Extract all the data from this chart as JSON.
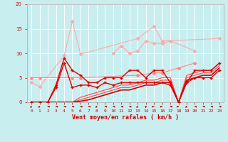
{
  "bg_color": "#c8eef0",
  "grid_color": "#ffffff",
  "xlabel": "Vent moyen/en rafales ( km/h )",
  "xlabel_color": "#cc0000",
  "tick_color": "#cc0000",
  "xlim": [
    -0.5,
    23.5
  ],
  "ylim": [
    0,
    20
  ],
  "yticks": [
    0,
    5,
    10,
    15,
    20
  ],
  "xticks": [
    0,
    1,
    2,
    3,
    4,
    5,
    6,
    7,
    8,
    9,
    10,
    11,
    12,
    13,
    14,
    15,
    16,
    17,
    18,
    19,
    20,
    21,
    22,
    23
  ],
  "lines": [
    {
      "x": [
        0,
        1,
        4,
        5,
        6,
        13,
        15,
        16,
        23
      ],
      "y": [
        4,
        3.2,
        9.5,
        16.5,
        9.8,
        13,
        15.5,
        12.5,
        13
      ],
      "color": "#ffaaaa",
      "lw": 0.8,
      "marker": "D",
      "ms": 2.0,
      "zorder": 3,
      "connected": false
    },
    {
      "x": [
        10,
        11,
        12,
        13,
        14,
        15,
        16,
        17,
        20
      ],
      "y": [
        10,
        11.5,
        10,
        10.5,
        12.5,
        12,
        12,
        12.5,
        10.5
      ],
      "color": "#ffaaaa",
      "lw": 0.8,
      "marker": "D",
      "ms": 2.0,
      "zorder": 3,
      "connected": false
    },
    {
      "x": [
        0,
        1,
        5,
        6,
        13,
        15,
        16,
        18,
        20
      ],
      "y": [
        5,
        5,
        5,
        5,
        5.5,
        6,
        6,
        7,
        8
      ],
      "color": "#ff8888",
      "lw": 0.8,
      "marker": "D",
      "ms": 2.0,
      "zorder": 4,
      "connected": false
    },
    {
      "x": [
        0,
        1,
        2,
        3,
        4,
        5,
        6,
        7,
        8,
        9,
        10,
        11,
        12,
        13,
        14,
        15,
        16,
        17,
        18,
        19,
        20,
        21,
        22,
        23
      ],
      "y": [
        0,
        0,
        0,
        3.5,
        9,
        6.5,
        5.5,
        4,
        4,
        5,
        5,
        5,
        6.5,
        6.5,
        5,
        6.5,
        6.5,
        4,
        0,
        4,
        6.5,
        6.5,
        6.5,
        8
      ],
      "color": "#dd0000",
      "lw": 1.0,
      "marker": "+",
      "ms": 3,
      "zorder": 5,
      "connected": true
    },
    {
      "x": [
        0,
        1,
        2,
        3,
        4,
        5,
        6,
        7,
        8,
        9,
        10,
        11,
        12,
        13,
        14,
        15,
        16,
        17,
        18,
        19,
        20,
        21,
        22,
        23
      ],
      "y": [
        0,
        0,
        0,
        3,
        8,
        3,
        3.5,
        3.5,
        3,
        4,
        3.5,
        4,
        4,
        4,
        4,
        4,
        4,
        3.5,
        0,
        4,
        5,
        5,
        5,
        6.5
      ],
      "color": "#dd0000",
      "lw": 1.0,
      "marker": "+",
      "ms": 3,
      "zorder": 5,
      "connected": true
    },
    {
      "x": [
        0,
        1,
        2,
        3,
        4,
        5,
        6,
        7,
        8,
        9,
        10,
        11,
        12,
        13,
        14,
        15,
        16,
        17,
        18,
        19,
        20,
        21,
        22,
        23
      ],
      "y": [
        0,
        0,
        0,
        0,
        0,
        0,
        1,
        1.5,
        2,
        2.5,
        3,
        3.5,
        3.5,
        4,
        4.5,
        4.5,
        5,
        5,
        0,
        5.5,
        6,
        6.5,
        6.5,
        8
      ],
      "color": "#ff4444",
      "lw": 0.8,
      "marker": null,
      "ms": 0,
      "zorder": 4,
      "connected": true
    },
    {
      "x": [
        0,
        1,
        2,
        3,
        4,
        5,
        6,
        7,
        8,
        9,
        10,
        11,
        12,
        13,
        14,
        15,
        16,
        17,
        18,
        19,
        20,
        21,
        22,
        23
      ],
      "y": [
        0,
        0,
        0,
        0,
        0,
        0,
        0.5,
        1,
        1.5,
        2,
        2.5,
        3,
        3,
        3.5,
        4,
        4,
        4.5,
        4.5,
        0,
        5,
        5.5,
        6,
        6,
        7.5
      ],
      "color": "#ff4444",
      "lw": 0.8,
      "marker": null,
      "ms": 0,
      "zorder": 4,
      "connected": true
    },
    {
      "x": [
        0,
        1,
        2,
        3,
        4,
        5,
        6,
        7,
        8,
        9,
        10,
        11,
        12,
        13,
        14,
        15,
        16,
        17,
        18,
        19,
        20,
        21,
        22,
        23
      ],
      "y": [
        0,
        0,
        0,
        0,
        0,
        0,
        0.2,
        0.5,
        1,
        1.5,
        2,
        2.5,
        2.5,
        3,
        3.5,
        3.5,
        4,
        4,
        0,
        4.5,
        5,
        5.5,
        5.5,
        7
      ],
      "color": "#cc0000",
      "lw": 1.2,
      "marker": null,
      "ms": 0,
      "zorder": 4,
      "connected": true
    }
  ],
  "wind_arrows": {
    "x": [
      0,
      1,
      2,
      3,
      4,
      5,
      6,
      7,
      8,
      9,
      10,
      11,
      12,
      13,
      14,
      15,
      16,
      17,
      18,
      19,
      20,
      21,
      22,
      23
    ],
    "angles": [
      225,
      225,
      270,
      270,
      270,
      270,
      270,
      270,
      225,
      270,
      270,
      270,
      270,
      225,
      180,
      90,
      90,
      270,
      90,
      225,
      270,
      270,
      270,
      270
    ]
  }
}
